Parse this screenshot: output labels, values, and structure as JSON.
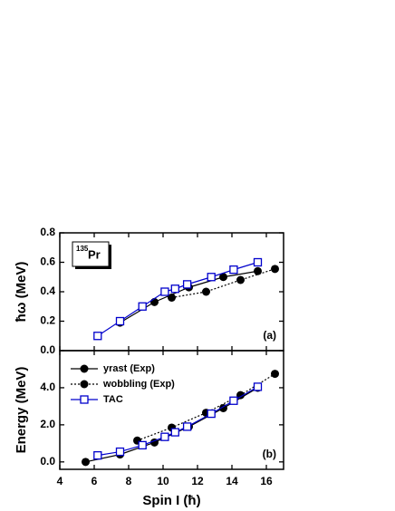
{
  "chart_data": [
    {
      "type": "line",
      "ylabel": "ħω (MeV)",
      "annotation": "(a)",
      "nucleus": {
        "mass": "135",
        "symbol": "Pr"
      },
      "xlim": [
        4,
        17
      ],
      "xticks": [
        4,
        6,
        8,
        10,
        12,
        14,
        16
      ],
      "ylim": [
        0,
        0.8
      ],
      "yticks": [
        {
          "value": 0,
          "label": "0.0"
        },
        {
          "value": 0.2,
          "label": "0.2"
        },
        {
          "value": 0.4,
          "label": "0.4"
        },
        {
          "value": 0.6,
          "label": "0.6"
        },
        {
          "value": 0.8,
          "label": "0.8"
        }
      ],
      "series": [
        {
          "name": "yrast (Exp)",
          "color": "#000000",
          "line_style": "solid",
          "marker": "circle",
          "x": [
            7.5,
            9.5,
            11.5,
            13.5,
            15.5
          ],
          "values": [
            0.19,
            0.33,
            0.43,
            0.5,
            0.54
          ]
        },
        {
          "name": "wobbling (Exp)",
          "color": "#000000",
          "line_style": "dotted",
          "marker": "circle",
          "x": [
            10.5,
            12.5,
            14.5,
            16.5
          ],
          "values": [
            0.36,
            0.4,
            0.48,
            0.555
          ]
        },
        {
          "name": "TAC",
          "color": "#0000cc",
          "line_style": "solid",
          "marker": "square",
          "x": [
            6.2,
            7.5,
            8.8,
            10.1,
            10.7,
            11.4,
            12.8,
            14.1,
            15.5
          ],
          "values": [
            0.1,
            0.2,
            0.3,
            0.4,
            0.42,
            0.45,
            0.5,
            0.55,
            0.6
          ]
        }
      ]
    },
    {
      "type": "line",
      "ylabel": "Energy (MeV)",
      "xlabel": "Spin I (ħ)",
      "annotation": "(b)",
      "legend": "top-left",
      "xlim": [
        4,
        17
      ],
      "xticks": [
        4,
        6,
        8,
        10,
        12,
        14,
        16
      ],
      "ylim": [
        -0.4,
        6.0
      ],
      "yticks": [
        {
          "value": 0,
          "label": "0.0"
        },
        {
          "value": 2,
          "label": "2.0"
        },
        {
          "value": 4,
          "label": "4.0"
        }
      ],
      "series": [
        {
          "name": "yrast (Exp)",
          "color": "#000000",
          "line_style": "solid",
          "marker": "circle",
          "x": [
            5.5,
            7.5,
            9.5,
            11.5,
            13.5,
            15.5
          ],
          "values": [
            0.0,
            0.4,
            1.05,
            1.9,
            2.9,
            4.0
          ]
        },
        {
          "name": "wobbling (Exp)",
          "color": "#000000",
          "line_style": "dotted",
          "marker": "circle",
          "x": [
            8.5,
            10.5,
            12.5,
            14.5,
            16.5
          ],
          "values": [
            1.15,
            1.85,
            2.65,
            3.6,
            4.75
          ]
        },
        {
          "name": "TAC",
          "color": "#0000cc",
          "line_style": "solid",
          "marker": "square",
          "x": [
            6.2,
            7.5,
            8.8,
            10.1,
            10.7,
            11.4,
            12.8,
            14.1,
            15.5
          ],
          "values": [
            0.35,
            0.55,
            0.9,
            1.35,
            1.6,
            1.9,
            2.6,
            3.3,
            4.05
          ]
        }
      ]
    }
  ]
}
